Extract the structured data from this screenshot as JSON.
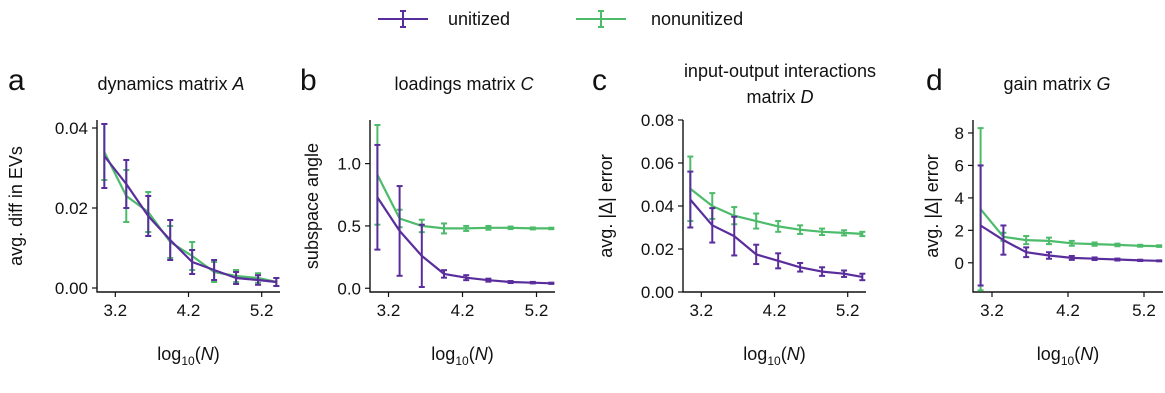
{
  "colors": {
    "unitized": "#5a2d9c",
    "nonunitized": "#4cbb6a",
    "axis": "#111111"
  },
  "legend": [
    {
      "label": "unitized",
      "color": "#5a2d9c"
    },
    {
      "label": "nonunitized",
      "color": "#4cbb6a"
    }
  ],
  "chart_data": [
    {
      "type": "line",
      "letter": "a",
      "title": [
        "dynamics matrix ",
        "A"
      ],
      "xlabel": "log",
      "xlabel_sub": "10",
      "xlabel_var": "N",
      "ylabel": "avg. diff in EVs",
      "xlim": [
        2.95,
        5.45
      ],
      "ylim": [
        -0.001,
        0.042
      ],
      "xticks": [
        3.2,
        4.2,
        5.2
      ],
      "xtick_labels": [
        "3.2",
        "4.2",
        "5.2"
      ],
      "yticks": [
        0.0,
        0.02,
        0.04
      ],
      "ytick_labels": [
        "0.00",
        "0.02",
        "0.04"
      ],
      "x": [
        3.05,
        3.35,
        3.65,
        3.95,
        4.25,
        4.55,
        4.85,
        5.15,
        5.4
      ],
      "series": [
        {
          "name": "unitized",
          "values": [
            0.033,
            0.026,
            0.018,
            0.012,
            0.0065,
            0.0045,
            0.0025,
            0.002,
            0.0015
          ],
          "err": [
            0.008,
            0.006,
            0.005,
            0.005,
            0.003,
            0.0025,
            0.0015,
            0.0012,
            0.001
          ]
        },
        {
          "name": "nonunitized",
          "values": [
            0.034,
            0.023,
            0.019,
            0.0115,
            0.008,
            0.004,
            0.003,
            0.0025,
            0.0015
          ],
          "err": [
            0.007,
            0.0065,
            0.005,
            0.004,
            0.0035,
            0.0025,
            0.0015,
            0.0012,
            0.001
          ]
        }
      ]
    },
    {
      "type": "line",
      "letter": "b",
      "title": [
        "loadings matrix ",
        "C"
      ],
      "xlabel": "log",
      "xlabel_sub": "10",
      "xlabel_var": "N",
      "ylabel": "subspace angle",
      "xlim": [
        2.95,
        5.45
      ],
      "ylim": [
        -0.03,
        1.35
      ],
      "xticks": [
        3.2,
        4.2,
        5.2
      ],
      "xtick_labels": [
        "3.2",
        "4.2",
        "5.2"
      ],
      "yticks": [
        0.0,
        0.5,
        1.0
      ],
      "ytick_labels": [
        "0.0",
        "0.5",
        "1.0"
      ],
      "x": [
        3.05,
        3.35,
        3.65,
        3.95,
        4.25,
        4.55,
        4.85,
        5.15,
        5.4
      ],
      "series": [
        {
          "name": "unitized",
          "values": [
            0.73,
            0.46,
            0.26,
            0.115,
            0.085,
            0.065,
            0.05,
            0.045,
            0.04
          ],
          "err": [
            0.42,
            0.36,
            0.25,
            0.03,
            0.02,
            0.012,
            0.008,
            0.006,
            0.005
          ]
        },
        {
          "name": "nonunitized",
          "values": [
            0.91,
            0.56,
            0.5,
            0.48,
            0.48,
            0.485,
            0.485,
            0.48,
            0.48
          ],
          "err": [
            0.4,
            0.07,
            0.05,
            0.04,
            0.02,
            0.015,
            0.01,
            0.008,
            0.006
          ]
        }
      ]
    },
    {
      "type": "line",
      "letter": "c",
      "title": [
        "input-output interactions",
        "matrix ",
        "D"
      ],
      "xlabel": "log",
      "xlabel_sub": "10",
      "xlabel_var": "N",
      "ylabel": "avg. |Δ| error",
      "xlim": [
        2.95,
        5.45
      ],
      "ylim": [
        0.0,
        0.08
      ],
      "xticks": [
        3.2,
        4.2,
        5.2
      ],
      "xtick_labels": [
        "3.2",
        "4.2",
        "5.2"
      ],
      "yticks": [
        0.0,
        0.02,
        0.04,
        0.06,
        0.08
      ],
      "ytick_labels": [
        "0.00",
        "0.02",
        "0.04",
        "0.06",
        "0.08"
      ],
      "x": [
        3.05,
        3.35,
        3.65,
        3.95,
        4.25,
        4.55,
        4.85,
        5.15,
        5.4
      ],
      "series": [
        {
          "name": "unitized",
          "values": [
            0.043,
            0.031,
            0.026,
            0.0175,
            0.0145,
            0.0115,
            0.0095,
            0.0085,
            0.007
          ],
          "err": [
            0.013,
            0.008,
            0.009,
            0.0045,
            0.0035,
            0.002,
            0.002,
            0.0015,
            0.0015
          ]
        },
        {
          "name": "nonunitized",
          "values": [
            0.048,
            0.04,
            0.0355,
            0.033,
            0.0305,
            0.029,
            0.028,
            0.0275,
            0.027
          ],
          "err": [
            0.015,
            0.006,
            0.004,
            0.0035,
            0.0025,
            0.002,
            0.0015,
            0.0012,
            0.001
          ]
        }
      ]
    },
    {
      "type": "line",
      "letter": "d",
      "title": [
        "gain matrix ",
        "G"
      ],
      "xlabel": "log",
      "xlabel_sub": "10",
      "xlabel_var": "N",
      "ylabel": "avg. |Δ| error",
      "xlim": [
        2.95,
        5.45
      ],
      "ylim": [
        -1.8,
        8.8
      ],
      "xticks": [
        3.2,
        4.2,
        5.2
      ],
      "xtick_labels": [
        "3.2",
        "4.2",
        "5.2"
      ],
      "yticks": [
        0,
        2,
        4,
        6,
        8
      ],
      "ytick_labels": [
        "0",
        "2",
        "4",
        "6",
        "8"
      ],
      "x": [
        3.05,
        3.35,
        3.65,
        3.95,
        4.25,
        4.55,
        4.85,
        5.15,
        5.4
      ],
      "series": [
        {
          "name": "unitized",
          "values": [
            2.3,
            1.4,
            0.65,
            0.45,
            0.3,
            0.25,
            0.2,
            0.15,
            0.12
          ],
          "err": [
            3.7,
            0.9,
            0.3,
            0.2,
            0.12,
            0.08,
            0.06,
            0.04,
            0.03
          ]
        },
        {
          "name": "nonunitized",
          "values": [
            3.3,
            1.6,
            1.4,
            1.35,
            1.2,
            1.15,
            1.1,
            1.05,
            1.03
          ],
          "err": [
            5.0,
            0.25,
            0.25,
            0.2,
            0.15,
            0.1,
            0.08,
            0.06,
            0.05
          ]
        }
      ]
    }
  ]
}
